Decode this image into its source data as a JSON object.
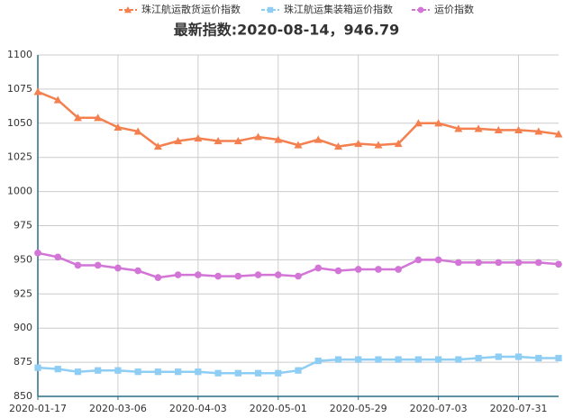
{
  "chart_data": {
    "type": "line",
    "title": "最新指数:2020-08-14，946.79",
    "categories": [
      "2020-01-17",
      null,
      null,
      null,
      "2020-03-06",
      null,
      null,
      null,
      "2020-04-03",
      null,
      null,
      null,
      "2020-05-01",
      null,
      null,
      null,
      "2020-05-29",
      null,
      null,
      null,
      "2020-07-03",
      null,
      null,
      null,
      "2020-07-31",
      null,
      null
    ],
    "series": [
      {
        "name": "珠江航运散货运价指数",
        "color": "#f4804f",
        "marker": "triangle",
        "values": [
          1073,
          1067,
          1054,
          1054,
          1047,
          1044,
          1033,
          1037,
          1039,
          1037,
          1037,
          1040,
          1038,
          1034,
          1038,
          1033,
          1035,
          1034,
          1035,
          1050,
          1050,
          1046,
          1046,
          1045,
          1045,
          1044,
          1042
        ]
      },
      {
        "name": "珠江航运集装箱运价指数",
        "color": "#8ecdf4",
        "marker": "square",
        "values": [
          871,
          870,
          868,
          869,
          869,
          868,
          868,
          868,
          868,
          867,
          867,
          867,
          867,
          869,
          876,
          877,
          877,
          877,
          877,
          877,
          877,
          877,
          878,
          879,
          879,
          878,
          878
        ]
      },
      {
        "name": "运价指数",
        "color": "#d275d6",
        "marker": "circle",
        "values": [
          955,
          952,
          946,
          946,
          944,
          942,
          937,
          939,
          939,
          938,
          938,
          939,
          939,
          938,
          944,
          942,
          943,
          943,
          943,
          950,
          950,
          948,
          948,
          948,
          948,
          948,
          946.79
        ]
      }
    ],
    "ylim": [
      850,
      1100
    ],
    "yticks": [
      850,
      875,
      900,
      925,
      950,
      975,
      1000,
      1025,
      1050,
      1075,
      1100
    ],
    "grid": true
  }
}
